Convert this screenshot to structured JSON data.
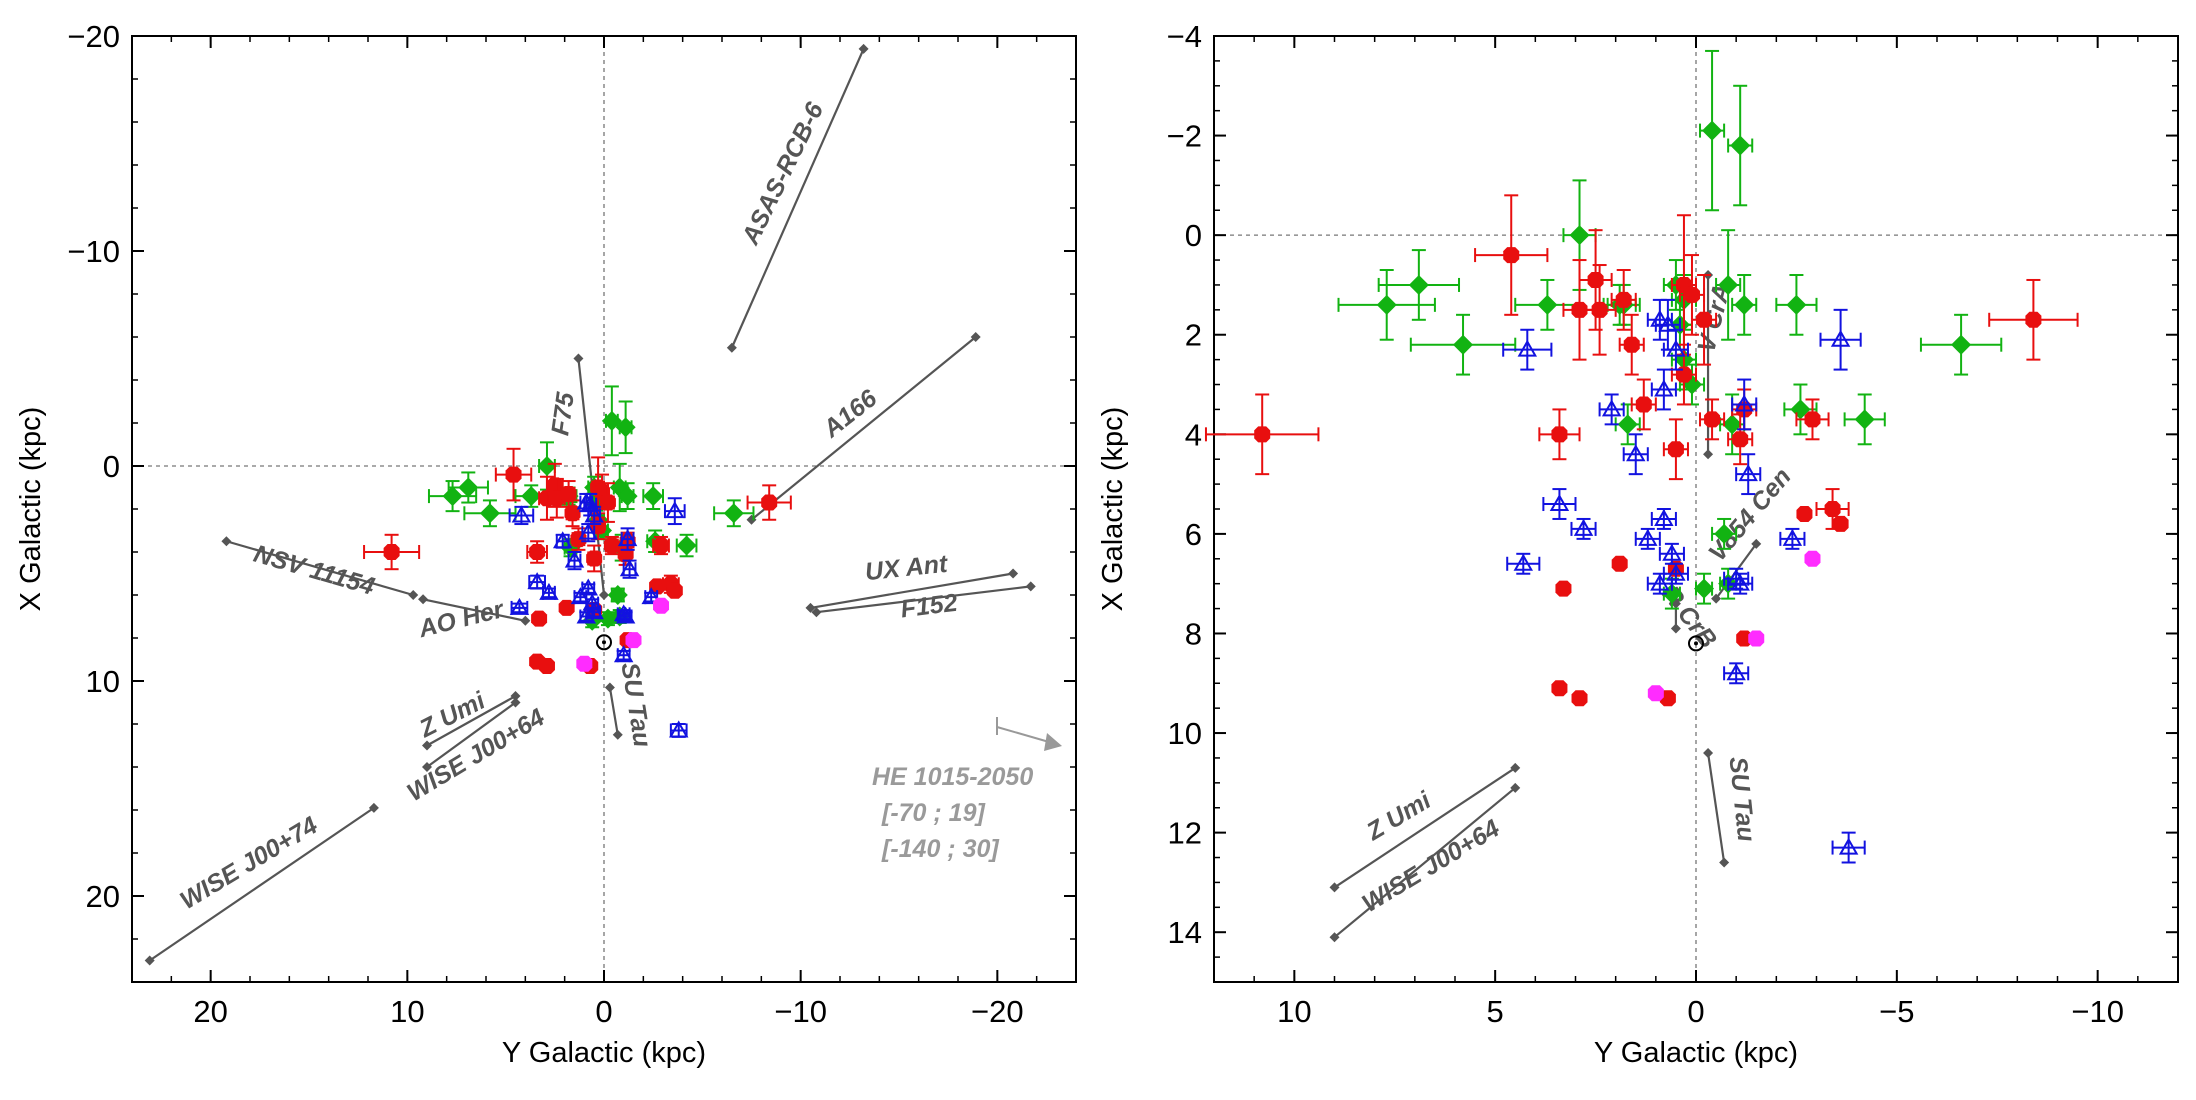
{
  "colors": {
    "green": "#12b312",
    "red": "#e80f0f",
    "blue": "#1212e0",
    "magenta": "#ff2cff",
    "track": "#555555",
    "track_light": "#9a9a9a"
  },
  "chart_data": [
    {
      "type": "scatter",
      "xlabel": "Y Galactic (kpc)",
      "ylabel": "X Galactic (kpc)",
      "xlim": [
        24,
        -24
      ],
      "ylim": [
        -20,
        24
      ],
      "xticks": [
        20,
        10,
        0,
        -10,
        -20
      ],
      "yticks": [
        -20,
        -10,
        0,
        10,
        20
      ],
      "sun": {
        "x": 0,
        "y": 8.2
      },
      "series": [
        {
          "name": "green",
          "points": [
            [
              7.7,
              1.4
            ],
            [
              6.9,
              1
            ],
            [
              5.8,
              2.2
            ],
            [
              3.7,
              1.4
            ],
            [
              2.9,
              0
            ],
            [
              1.9,
              1.4
            ],
            [
              1.8,
              1.4
            ],
            [
              1.7,
              3.8
            ],
            [
              0.5,
              1
            ],
            [
              0.4,
              1.8
            ],
            [
              0.3,
              1.3
            ],
            [
              0.3,
              2.5
            ],
            [
              0.1,
              3
            ],
            [
              -0.4,
              -2.1
            ],
            [
              -0.8,
              1
            ],
            [
              -0.9,
              3.8
            ],
            [
              -1.1,
              -1.8
            ],
            [
              -1.2,
              1.4
            ],
            [
              -2.5,
              1.4
            ],
            [
              -2.6,
              3.5
            ],
            [
              -4.2,
              3.7
            ],
            [
              -6.6,
              2.2
            ],
            [
              -0.7,
              6
            ],
            [
              -0.2,
              7.1
            ],
            [
              -0.8,
              7
            ],
            [
              0.6,
              7.2
            ]
          ],
          "xerr": [
            1.2,
            1.0,
            1.3,
            0.8,
            0.4,
            0.4,
            0.4,
            0.3,
            0.3,
            0.3,
            0.3,
            0.3,
            0.3,
            0.3,
            0.3,
            0.3,
            0.3,
            0.3,
            0.5,
            0.4,
            0.5,
            1.0,
            0.3,
            0.2,
            0.2,
            0.2
          ],
          "yerr": [
            0.7,
            0.7,
            0.6,
            0.5,
            1.1,
            0.4,
            0.4,
            0.4,
            0.5,
            0.5,
            0.5,
            0.6,
            0.4,
            1.6,
            1.1,
            0.6,
            1.2,
            0.6,
            0.6,
            0.5,
            0.5,
            0.6,
            0.3,
            0.3,
            0.3,
            0.3
          ]
        },
        {
          "name": "red",
          "points": [
            [
              10.8,
              4
            ],
            [
              4.6,
              0.4
            ],
            [
              3.4,
              4
            ],
            [
              2.9,
              1.5
            ],
            [
              2.5,
              0.9
            ],
            [
              2.4,
              1.5
            ],
            [
              1.8,
              1.3
            ],
            [
              1.6,
              2.2
            ],
            [
              1.3,
              3.4
            ],
            [
              0.5,
              4.3
            ],
            [
              0.3,
              1
            ],
            [
              0.3,
              2.8
            ],
            [
              0.1,
              1.2
            ],
            [
              -0.2,
              1.7
            ],
            [
              -0.4,
              3.7
            ],
            [
              -1.1,
              4.1
            ],
            [
              -1.2,
              3.5
            ],
            [
              -2.9,
              3.7
            ],
            [
              -3.4,
              5.5
            ],
            [
              -8.4,
              1.7
            ],
            [
              3.3,
              7.1
            ],
            [
              1.9,
              6.6
            ],
            [
              0.5,
              6.7
            ],
            [
              2.9,
              9.3
            ],
            [
              0.7,
              9.3
            ],
            [
              3.4,
              9.1
            ],
            [
              -1.2,
              8.1
            ],
            [
              -2.7,
              5.6
            ],
            [
              -3.6,
              5.8
            ]
          ],
          "xerr": [
            1.4,
            0.9,
            0.5,
            0.4,
            0.4,
            0.4,
            0.3,
            0.3,
            0.3,
            0.3,
            0.3,
            0.3,
            0.3,
            0.3,
            0.3,
            0.3,
            0.3,
            0.4,
            0.4,
            1.1,
            0,
            0,
            0,
            0,
            0,
            0,
            0,
            0,
            0
          ],
          "yerr": [
            0.8,
            1.2,
            0.5,
            1.0,
            1.0,
            0.9,
            0.6,
            0.6,
            0.5,
            0.6,
            1.4,
            0.6,
            0.8,
            0.9,
            0.4,
            0.5,
            0.4,
            0.4,
            0.4,
            0.8,
            0,
            0,
            0,
            0,
            0,
            0,
            0,
            0,
            0
          ]
        },
        {
          "name": "blue",
          "points": [
            [
              4.2,
              2.3
            ],
            [
              2.1,
              3.5
            ],
            [
              0.9,
              1.7
            ],
            [
              0.8,
              3.1
            ],
            [
              0.7,
              1.8
            ],
            [
              0.5,
              2.3
            ],
            [
              1.5,
              4.4
            ],
            [
              3.4,
              5.4
            ],
            [
              0.8,
              5.7
            ],
            [
              4.3,
              6.6
            ],
            [
              2.8,
              5.9
            ],
            [
              1.2,
              6.1
            ],
            [
              0.6,
              6.4
            ],
            [
              0.5,
              6.8
            ],
            [
              0.9,
              7.0
            ],
            [
              -1.0,
              6.9
            ],
            [
              -2.4,
              6.1
            ],
            [
              -1.2,
              3.4
            ],
            [
              -1.3,
              4.8
            ],
            [
              -3.6,
              2.1
            ],
            [
              -1.1,
              7.0
            ],
            [
              -1.0,
              8.8
            ],
            [
              -3.8,
              12.3
            ]
          ],
          "xerr": [
            0.6,
            0.3,
            0.3,
            0.3,
            0.3,
            0.3,
            0.3,
            0.4,
            0.3,
            0.4,
            0.3,
            0.3,
            0.3,
            0.3,
            0.3,
            0.3,
            0.3,
            0.3,
            0.3,
            0.5,
            0.3,
            0.3,
            0.4
          ],
          "yerr": [
            0.4,
            0.3,
            0.4,
            0.4,
            0.5,
            0.4,
            0.4,
            0.3,
            0.2,
            0.2,
            0.2,
            0.2,
            0.2,
            0.2,
            0.2,
            0.2,
            0.2,
            0.5,
            0.4,
            0.6,
            0.2,
            0.2,
            0.3
          ]
        },
        {
          "name": "magenta",
          "points": [
            [
              -2.9,
              6.5
            ],
            [
              -1.5,
              8.1
            ],
            [
              1.0,
              9.2
            ]
          ]
        }
      ],
      "tracks": [
        {
          "label": "ASAS-RCB-6",
          "from": [
            -6.5,
            -5.5
          ],
          "to": [
            -13.2,
            -19.4
          ]
        },
        {
          "label": "A166",
          "from": [
            -7.5,
            2.5
          ],
          "to": [
            -18.9,
            -6
          ]
        },
        {
          "label": "F75",
          "from": [
            1.3,
            -5
          ],
          "to": [
            0,
            6
          ]
        },
        {
          "label": "NSV 11154",
          "from": [
            19.2,
            3.5
          ],
          "to": [
            9.7,
            6
          ]
        },
        {
          "label": "AO Her",
          "from": [
            9.2,
            6.2
          ],
          "to": [
            4,
            7.2
          ]
        },
        {
          "label": "UX Ant",
          "from": [
            -10.5,
            6.6
          ],
          "to": [
            -20.8,
            5
          ]
        },
        {
          "label": "F152",
          "from": [
            -10.8,
            6.8
          ],
          "to": [
            -21.7,
            5.6
          ]
        },
        {
          "label": "Z Umi",
          "from": [
            4.5,
            10.7
          ],
          "to": [
            9,
            13
          ]
        },
        {
          "label": "WISE J00+64",
          "from": [
            4.5,
            11
          ],
          "to": [
            9,
            14
          ]
        },
        {
          "label": "WISE J00+74",
          "from": [
            11.7,
            15.9
          ],
          "to": [
            23.1,
            23
          ]
        },
        {
          "label": "SU Tau",
          "from": [
            -0.3,
            10.3
          ],
          "to": [
            -0.7,
            12.5
          ]
        }
      ],
      "extra_labels": {
        "he": "HE 1015-2050",
        "range1": "[-70 ; 19]",
        "range2": "[-140 ; 30]"
      }
    },
    {
      "type": "scatter",
      "xlabel": "Y Galactic (kpc)",
      "ylabel": "X Galactic (kpc)",
      "xlim": [
        12,
        -12
      ],
      "ylim": [
        -4,
        15
      ],
      "xticks": [
        10,
        5,
        0,
        -5,
        -10
      ],
      "yticks": [
        -4,
        -2,
        0,
        2,
        4,
        6,
        8,
        10,
        12,
        14
      ],
      "sun": {
        "x": 0,
        "y": 8.2
      },
      "tracks": [
        {
          "label": "V CrA",
          "from": [
            -0.3,
            0.8
          ],
          "to": [
            -0.3,
            4.4
          ]
        },
        {
          "label": "V854 Cen",
          "from": [
            -1.5,
            6.2
          ],
          "to": [
            -0.5,
            7.3
          ]
        },
        {
          "label": "R CrB",
          "from": [
            0.5,
            7.4
          ],
          "to": [
            0.5,
            7.9
          ]
        },
        {
          "label": "SU Tau",
          "from": [
            -0.3,
            10.4
          ],
          "to": [
            -0.7,
            12.6
          ]
        },
        {
          "label": "Z Umi",
          "from": [
            4.5,
            10.7
          ],
          "to": [
            9,
            13.1
          ]
        },
        {
          "label": "WISE J00+64",
          "from": [
            4.5,
            11.1
          ],
          "to": [
            9,
            14.1
          ]
        }
      ]
    }
  ]
}
